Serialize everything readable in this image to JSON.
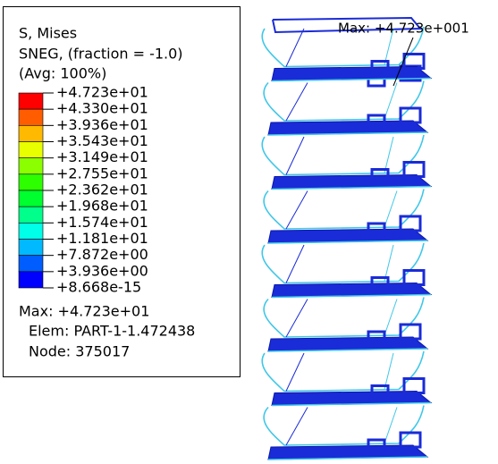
{
  "legend": {
    "title": [
      "S, Mises",
      "SNEG, (fraction = -1.0)",
      "(Avg: 100%)"
    ],
    "levels": [
      "+4.723e+01",
      "+4.330e+01",
      "+3.936e+01",
      "+3.543e+01",
      "+3.149e+01",
      "+2.755e+01",
      "+2.362e+01",
      "+1.968e+01",
      "+1.574e+01",
      "+1.181e+01",
      "+7.872e+00",
      "+3.936e+00",
      "+8.668e-15"
    ],
    "colors": [
      "#ff0000",
      "#ff5d00",
      "#ffb900",
      "#e8ff00",
      "#8bff00",
      "#2eff00",
      "#00ff2e",
      "#00ff8b",
      "#00ffe8",
      "#00b9ff",
      "#005dff",
      "#0000ff"
    ],
    "max": "Max: +4.723e+01",
    "elem": "Elem: PART-1-1.472438",
    "node": "Node: 375017"
  },
  "viewport": {
    "max_annotation": "Max: +4.723e+001"
  }
}
